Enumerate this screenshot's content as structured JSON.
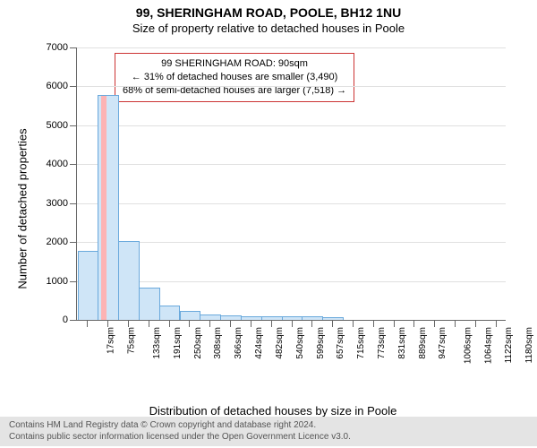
{
  "title_line1": "99, SHERINGHAM ROAD, POOLE, BH12 1NU",
  "title_line2": "Size of property relative to detached houses in Poole",
  "ylabel": "Number of detached properties",
  "xlabel": "Distribution of detached houses by size in Poole",
  "chart": {
    "type": "histogram",
    "ylim": [
      0,
      7000
    ],
    "ytick_step": 1000,
    "yticks": [
      0,
      1000,
      2000,
      3000,
      4000,
      5000,
      6000,
      7000
    ],
    "xtick_labels": [
      "17sqm",
      "75sqm",
      "133sqm",
      "191sqm",
      "250sqm",
      "308sqm",
      "366sqm",
      "424sqm",
      "482sqm",
      "540sqm",
      "599sqm",
      "657sqm",
      "715sqm",
      "773sqm",
      "831sqm",
      "889sqm",
      "947sqm",
      "1006sqm",
      "1064sqm",
      "1122sqm",
      "1180sqm"
    ],
    "bars": [
      1750,
      5750,
      2000,
      800,
      350,
      200,
      120,
      100,
      80,
      70,
      60,
      60,
      55,
      0,
      0,
      0,
      0,
      0,
      0,
      0,
      0
    ],
    "bar_fill": "#cfe5f7",
    "bar_stroke": "#6aa9dc",
    "grid_color": "#e0e0e0",
    "axis_color": "#666666",
    "background_color": "#ffffff",
    "highlight": {
      "bar_index": 1,
      "fraction": 0.3,
      "color": "#ffb0b0"
    }
  },
  "annotation": {
    "line1": "99 SHERINGHAM ROAD: 90sqm",
    "line2": "← 31% of detached houses are smaller (3,490)",
    "line3": "68% of semi-detached houses are larger (7,518) →",
    "border_color": "#cc3333"
  },
  "footer": {
    "line1": "Contains HM Land Registry data © Crown copyright and database right 2024.",
    "line2": "Contains public sector information licensed under the Open Government Licence v3.0."
  }
}
